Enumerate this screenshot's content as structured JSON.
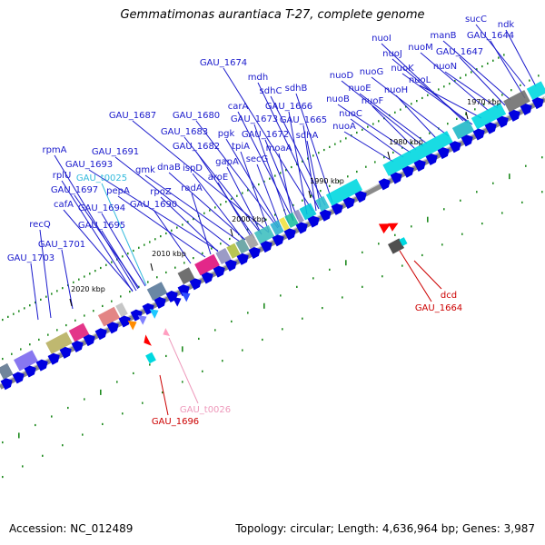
{
  "title": "Gemmatimonas aurantiaca T-27, complete genome",
  "footer": {
    "accession": "Accession: NC_012489",
    "stats": "Topology: circular; Length: 4,636,964 bp; Genes: 3,987"
  },
  "colors": {
    "gene_label": "#1a1acc",
    "highlight_label": "#cc0000",
    "trna_label": "#33bbdd",
    "trna_label_light": "#ee99bb",
    "feature_arrow": "#0000e0",
    "backbone": "#8a8a8a",
    "dot": "#1e8a1e"
  },
  "scale_ticks": [
    "1970 kbp",
    "1980 kbp",
    "1990 kbp",
    "2000 kbp",
    "2010 kbp",
    "2020 kbp"
  ],
  "gene_labels": [
    {
      "text": "ndk",
      "kind": "gene"
    },
    {
      "text": "sucC",
      "kind": "gene"
    },
    {
      "text": "GAU_1644",
      "kind": "gene"
    },
    {
      "text": "manB",
      "kind": "gene"
    },
    {
      "text": "GAU_1647",
      "kind": "gene"
    },
    {
      "text": "nuoM",
      "kind": "gene"
    },
    {
      "text": "nuoN",
      "kind": "gene"
    },
    {
      "text": "nuoI",
      "kind": "gene"
    },
    {
      "text": "nuoJ",
      "kind": "gene"
    },
    {
      "text": "nuoK",
      "kind": "gene"
    },
    {
      "text": "nuoG",
      "kind": "gene"
    },
    {
      "text": "nuoL",
      "kind": "gene"
    },
    {
      "text": "nuoD",
      "kind": "gene"
    },
    {
      "text": "nuoE",
      "kind": "gene"
    },
    {
      "text": "nuoH",
      "kind": "gene"
    },
    {
      "text": "nuoB",
      "kind": "gene"
    },
    {
      "text": "nuoF",
      "kind": "gene"
    },
    {
      "text": "nuoC",
      "kind": "gene"
    },
    {
      "text": "nuoA",
      "kind": "gene"
    },
    {
      "text": "GAU_1674",
      "kind": "gene"
    },
    {
      "text": "mdh",
      "kind": "gene"
    },
    {
      "text": "sdhC",
      "kind": "gene"
    },
    {
      "text": "sdhB",
      "kind": "gene"
    },
    {
      "text": "carA",
      "kind": "gene"
    },
    {
      "text": "GAU_1666",
      "kind": "gene"
    },
    {
      "text": "GAU_1673",
      "kind": "gene"
    },
    {
      "text": "GAU_1665",
      "kind": "gene"
    },
    {
      "text": "GAU_1687",
      "kind": "gene"
    },
    {
      "text": "GAU_1680",
      "kind": "gene"
    },
    {
      "text": "pgk",
      "kind": "gene"
    },
    {
      "text": "GAU_1672",
      "kind": "gene"
    },
    {
      "text": "sdhA",
      "kind": "gene"
    },
    {
      "text": "GAU_1683",
      "kind": "gene"
    },
    {
      "text": "tpiA",
      "kind": "gene"
    },
    {
      "text": "secG",
      "kind": "gene"
    },
    {
      "text": "moaA",
      "kind": "gene"
    },
    {
      "text": "GAU_1682",
      "kind": "gene"
    },
    {
      "text": "GAU_1691",
      "kind": "gene"
    },
    {
      "text": "gapA",
      "kind": "gene"
    },
    {
      "text": "rpmA",
      "kind": "gene"
    },
    {
      "text": "GAU_1693",
      "kind": "gene"
    },
    {
      "text": "gmk",
      "kind": "gene"
    },
    {
      "text": "dnaB",
      "kind": "gene"
    },
    {
      "text": "ispD",
      "kind": "gene"
    },
    {
      "text": "aroE",
      "kind": "gene"
    },
    {
      "text": "rplU",
      "kind": "gene"
    },
    {
      "text": "GAU_t0025",
      "kind": "trna"
    },
    {
      "text": "GAU_1697",
      "kind": "gene"
    },
    {
      "text": "pepA",
      "kind": "gene"
    },
    {
      "text": "rpoZ",
      "kind": "gene"
    },
    {
      "text": "radA",
      "kind": "gene"
    },
    {
      "text": "cafA",
      "kind": "gene"
    },
    {
      "text": "GAU_1694",
      "kind": "gene"
    },
    {
      "text": "GAU_1690",
      "kind": "gene"
    },
    {
      "text": "recQ",
      "kind": "gene"
    },
    {
      "text": "GAU_1695",
      "kind": "gene"
    },
    {
      "text": "GAU_1701",
      "kind": "gene"
    },
    {
      "text": "GAU_1703",
      "kind": "gene"
    }
  ],
  "highlight_labels": [
    {
      "text": "dcd",
      "kind": "highlight"
    },
    {
      "text": "GAU_1664",
      "kind": "highlight"
    },
    {
      "text": "GAU_t0026",
      "kind": "trna_light"
    },
    {
      "text": "GAU_1696",
      "kind": "highlight"
    }
  ]
}
